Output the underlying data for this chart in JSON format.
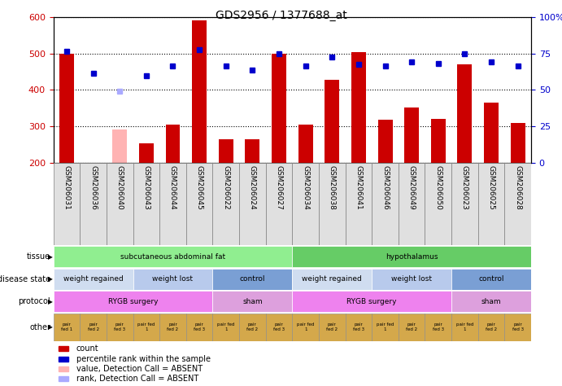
{
  "title": "GDS2956 / 1377688_at",
  "samples": [
    "GSM206031",
    "GSM206036",
    "GSM206040",
    "GSM206043",
    "GSM206044",
    "GSM206045",
    "GSM206022",
    "GSM206024",
    "GSM206027",
    "GSM206034",
    "GSM206038",
    "GSM206041",
    "GSM206046",
    "GSM206049",
    "GSM206050",
    "GSM206023",
    "GSM206025",
    "GSM206028"
  ],
  "bar_values": [
    500,
    200,
    290,
    252,
    305,
    592,
    265,
    265,
    500,
    305,
    428,
    505,
    318,
    352,
    320,
    470,
    365,
    308
  ],
  "bar_absent": [
    false,
    false,
    true,
    false,
    false,
    false,
    false,
    false,
    false,
    false,
    false,
    false,
    false,
    false,
    false,
    false,
    false,
    false
  ],
  "scatter_values": [
    507,
    447,
    397,
    440,
    465,
    510,
    467,
    455,
    500,
    467,
    490,
    470,
    467,
    478,
    473,
    500,
    478,
    467
  ],
  "scatter_absent": [
    false,
    false,
    true,
    false,
    false,
    false,
    false,
    false,
    false,
    false,
    false,
    false,
    false,
    false,
    false,
    false,
    false,
    false
  ],
  "ylim": [
    200,
    600
  ],
  "yticks_left": [
    200,
    300,
    400,
    500,
    600
  ],
  "bar_color_normal": "#cc0000",
  "bar_color_absent": "#ffb3b3",
  "scatter_color_normal": "#0000cc",
  "scatter_color_absent": "#aaaaff",
  "tissue_row": {
    "segments": [
      {
        "text": "subcutaneous abdominal fat",
        "start": 0,
        "end": 9,
        "color": "#90ee90"
      },
      {
        "text": "hypothalamus",
        "start": 9,
        "end": 18,
        "color": "#66cc66"
      }
    ]
  },
  "disease_row": {
    "segments": [
      {
        "text": "weight regained",
        "start": 0,
        "end": 3,
        "color": "#d0ddf0"
      },
      {
        "text": "weight lost",
        "start": 3,
        "end": 6,
        "color": "#b8caec"
      },
      {
        "text": "control",
        "start": 6,
        "end": 9,
        "color": "#7a9fd4"
      },
      {
        "text": "weight regained",
        "start": 9,
        "end": 12,
        "color": "#d0ddf0"
      },
      {
        "text": "weight lost",
        "start": 12,
        "end": 15,
        "color": "#b8caec"
      },
      {
        "text": "control",
        "start": 15,
        "end": 18,
        "color": "#7a9fd4"
      }
    ]
  },
  "protocol_row": {
    "segments": [
      {
        "text": "RYGB surgery",
        "start": 0,
        "end": 6,
        "color": "#ee82ee"
      },
      {
        "text": "sham",
        "start": 6,
        "end": 9,
        "color": "#dda0dd"
      },
      {
        "text": "RYGB surgery",
        "start": 9,
        "end": 15,
        "color": "#ee82ee"
      },
      {
        "text": "sham",
        "start": 15,
        "end": 18,
        "color": "#dda0dd"
      }
    ]
  },
  "other_cells": [
    "pair\nfed 1",
    "pair\nfed 2",
    "pair\nfed 3",
    "pair fed\n1",
    "pair\nfed 2",
    "pair\nfed 3",
    "pair fed\n1",
    "pair\nfed 2",
    "pair\nfed 3",
    "pair fed\n1",
    "pair\nfed 2",
    "pair\nfed 3",
    "pair fed\n1",
    "pair\nfed 2",
    "pair\nfed 3",
    "pair fed\n1",
    "pair\nfed 2",
    "pair\nfed 3"
  ],
  "other_color": "#d4a84b",
  "legend": [
    {
      "color": "#cc0000",
      "label": "count"
    },
    {
      "color": "#0000cc",
      "label": "percentile rank within the sample"
    },
    {
      "color": "#ffb3b3",
      "label": "value, Detection Call = ABSENT"
    },
    {
      "color": "#aaaaff",
      "label": "rank, Detection Call = ABSENT"
    }
  ],
  "left_label_color": "#cc0000",
  "right_label_color": "#0000cc",
  "background_color": "#ffffff",
  "grid_color": "#000000",
  "sample_bg_color": "#e0e0e0"
}
